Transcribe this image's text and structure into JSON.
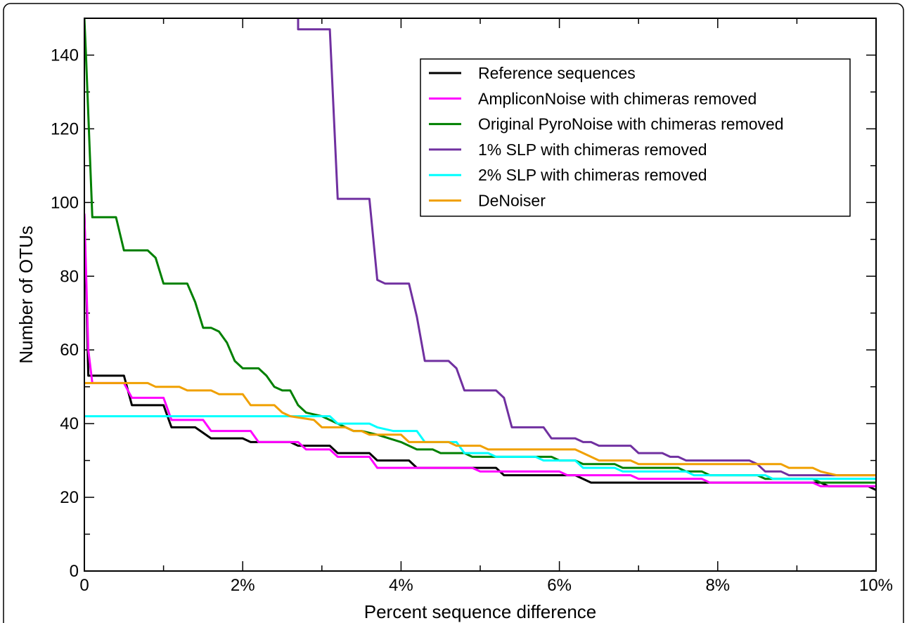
{
  "chart_data": {
    "type": "line",
    "xlabel": "Percent sequence difference",
    "ylabel": "Number of OTUs",
    "xlim": [
      0,
      10
    ],
    "ylim": [
      0,
      150
    ],
    "x_ticks": [
      {
        "value": 0,
        "label": "0"
      },
      {
        "value": 2,
        "label": "2%"
      },
      {
        "value": 4,
        "label": "4%"
      },
      {
        "value": 6,
        "label": "6%"
      },
      {
        "value": 8,
        "label": "8%"
      },
      {
        "value": 10,
        "label": "10%"
      }
    ],
    "y_ticks": [
      {
        "value": 0,
        "label": "0"
      },
      {
        "value": 20,
        "label": "20"
      },
      {
        "value": 40,
        "label": "40"
      },
      {
        "value": 60,
        "label": "60"
      },
      {
        "value": 80,
        "label": "80"
      },
      {
        "value": 100,
        "label": "100"
      },
      {
        "value": 120,
        "label": "120"
      },
      {
        "value": 140,
        "label": "140"
      }
    ],
    "grid": false,
    "legend_position": "top-right",
    "series": [
      {
        "name": "Reference sequences",
        "color": "#000000",
        "points": [
          [
            0,
            97
          ],
          [
            0.05,
            53
          ],
          [
            0.5,
            53
          ],
          [
            0.6,
            45
          ],
          [
            1.0,
            45
          ],
          [
            1.1,
            39
          ],
          [
            1.4,
            39
          ],
          [
            1.6,
            36
          ],
          [
            2.0,
            36
          ],
          [
            2.1,
            35
          ],
          [
            2.6,
            35
          ],
          [
            2.7,
            34
          ],
          [
            3.1,
            34
          ],
          [
            3.2,
            32
          ],
          [
            3.6,
            32
          ],
          [
            3.7,
            30
          ],
          [
            4.1,
            30
          ],
          [
            4.2,
            28
          ],
          [
            5.2,
            28
          ],
          [
            5.3,
            26
          ],
          [
            6.2,
            26
          ],
          [
            6.4,
            24
          ],
          [
            9.3,
            24
          ],
          [
            9.4,
            23
          ],
          [
            9.9,
            23
          ],
          [
            10,
            22
          ]
        ]
      },
      {
        "name": "AmpliconNoise with chimeras removed",
        "color": "#ff00ff",
        "points": [
          [
            0,
            97
          ],
          [
            0.05,
            60
          ],
          [
            0.1,
            51
          ],
          [
            0.5,
            51
          ],
          [
            0.6,
            47
          ],
          [
            1.0,
            47
          ],
          [
            1.1,
            41
          ],
          [
            1.5,
            41
          ],
          [
            1.6,
            38
          ],
          [
            2.1,
            38
          ],
          [
            2.2,
            35
          ],
          [
            2.7,
            35
          ],
          [
            2.8,
            33
          ],
          [
            3.1,
            33
          ],
          [
            3.2,
            31
          ],
          [
            3.6,
            31
          ],
          [
            3.7,
            28
          ],
          [
            4.9,
            28
          ],
          [
            5.0,
            27
          ],
          [
            6.0,
            27
          ],
          [
            6.1,
            26
          ],
          [
            6.9,
            26
          ],
          [
            7.0,
            25
          ],
          [
            7.8,
            25
          ],
          [
            7.9,
            24
          ],
          [
            9.2,
            24
          ],
          [
            9.3,
            23
          ],
          [
            10,
            23
          ]
        ]
      },
      {
        "name": "Original PyroNoise with chimeras removed",
        "color": "#008000",
        "points": [
          [
            0,
            150
          ],
          [
            0.02,
            140
          ],
          [
            0.1,
            96
          ],
          [
            0.4,
            96
          ],
          [
            0.5,
            87
          ],
          [
            0.8,
            87
          ],
          [
            0.9,
            85
          ],
          [
            1.0,
            78
          ],
          [
            1.3,
            78
          ],
          [
            1.4,
            73
          ],
          [
            1.5,
            66
          ],
          [
            1.6,
            66
          ],
          [
            1.7,
            65
          ],
          [
            1.8,
            62
          ],
          [
            1.9,
            57
          ],
          [
            2.0,
            55
          ],
          [
            2.2,
            55
          ],
          [
            2.3,
            53
          ],
          [
            2.4,
            50
          ],
          [
            2.5,
            49
          ],
          [
            2.6,
            49
          ],
          [
            2.7,
            45
          ],
          [
            2.8,
            43
          ],
          [
            3.0,
            42
          ],
          [
            3.2,
            40
          ],
          [
            3.4,
            38
          ],
          [
            3.5,
            38
          ],
          [
            3.7,
            37
          ],
          [
            4.0,
            35
          ],
          [
            4.2,
            33
          ],
          [
            4.4,
            33
          ],
          [
            4.5,
            32
          ],
          [
            4.8,
            32
          ],
          [
            4.9,
            31
          ],
          [
            5.9,
            31
          ],
          [
            6.0,
            30
          ],
          [
            6.2,
            30
          ],
          [
            6.3,
            29
          ],
          [
            6.7,
            29
          ],
          [
            6.8,
            28
          ],
          [
            7.5,
            28
          ],
          [
            7.6,
            27
          ],
          [
            7.8,
            27
          ],
          [
            7.9,
            26
          ],
          [
            8.5,
            26
          ],
          [
            8.6,
            25
          ],
          [
            9.2,
            25
          ],
          [
            9.3,
            24
          ],
          [
            10,
            24
          ]
        ]
      },
      {
        "name": "1% SLP with chimeras removed",
        "color": "#7030a0",
        "points": [
          [
            2.7,
            150
          ],
          [
            2.7,
            147
          ],
          [
            3.1,
            147
          ],
          [
            3.2,
            101
          ],
          [
            3.6,
            101
          ],
          [
            3.7,
            79
          ],
          [
            3.8,
            78
          ],
          [
            4.1,
            78
          ],
          [
            4.2,
            69
          ],
          [
            4.3,
            57
          ],
          [
            4.6,
            57
          ],
          [
            4.7,
            55
          ],
          [
            4.8,
            49
          ],
          [
            5.2,
            49
          ],
          [
            5.3,
            47
          ],
          [
            5.4,
            39
          ],
          [
            5.8,
            39
          ],
          [
            5.9,
            36
          ],
          [
            6.2,
            36
          ],
          [
            6.3,
            35
          ],
          [
            6.4,
            35
          ],
          [
            6.5,
            34
          ],
          [
            6.9,
            34
          ],
          [
            7.0,
            32
          ],
          [
            7.3,
            32
          ],
          [
            7.4,
            31
          ],
          [
            7.5,
            31
          ],
          [
            7.6,
            30
          ],
          [
            8.4,
            30
          ],
          [
            8.5,
            29
          ],
          [
            8.6,
            27
          ],
          [
            8.8,
            27
          ],
          [
            8.9,
            26
          ],
          [
            10,
            26
          ]
        ]
      },
      {
        "name": "2% SLP with chimeras removed",
        "color": "#00ffff",
        "points": [
          [
            0,
            42
          ],
          [
            3.1,
            42
          ],
          [
            3.2,
            40
          ],
          [
            3.6,
            40
          ],
          [
            3.7,
            39
          ],
          [
            3.9,
            38
          ],
          [
            4.2,
            38
          ],
          [
            4.3,
            35
          ],
          [
            4.7,
            35
          ],
          [
            4.8,
            32
          ],
          [
            5.1,
            32
          ],
          [
            5.2,
            31
          ],
          [
            5.7,
            31
          ],
          [
            5.8,
            30
          ],
          [
            6.2,
            30
          ],
          [
            6.3,
            28
          ],
          [
            6.7,
            28
          ],
          [
            6.8,
            27
          ],
          [
            7.6,
            27
          ],
          [
            7.7,
            26
          ],
          [
            8.6,
            26
          ],
          [
            8.7,
            25
          ],
          [
            10,
            25
          ]
        ]
      },
      {
        "name": "DeNoiser",
        "color": "#f0a000",
        "points": [
          [
            0,
            51
          ],
          [
            0.8,
            51
          ],
          [
            0.9,
            50
          ],
          [
            1.2,
            50
          ],
          [
            1.3,
            49
          ],
          [
            1.6,
            49
          ],
          [
            1.7,
            48
          ],
          [
            2.0,
            48
          ],
          [
            2.1,
            45
          ],
          [
            2.4,
            45
          ],
          [
            2.5,
            43
          ],
          [
            2.6,
            42
          ],
          [
            2.9,
            41
          ],
          [
            3.0,
            39
          ],
          [
            3.3,
            39
          ],
          [
            3.4,
            38
          ],
          [
            3.5,
            38
          ],
          [
            3.6,
            37
          ],
          [
            4.0,
            37
          ],
          [
            4.1,
            35
          ],
          [
            4.6,
            35
          ],
          [
            4.7,
            34
          ],
          [
            5.0,
            34
          ],
          [
            5.1,
            33
          ],
          [
            6.2,
            33
          ],
          [
            6.3,
            32
          ],
          [
            6.5,
            30
          ],
          [
            6.9,
            30
          ],
          [
            7.0,
            29
          ],
          [
            8.8,
            29
          ],
          [
            8.9,
            28
          ],
          [
            9.2,
            28
          ],
          [
            9.3,
            27
          ],
          [
            9.5,
            26
          ],
          [
            10,
            26
          ]
        ]
      }
    ]
  }
}
